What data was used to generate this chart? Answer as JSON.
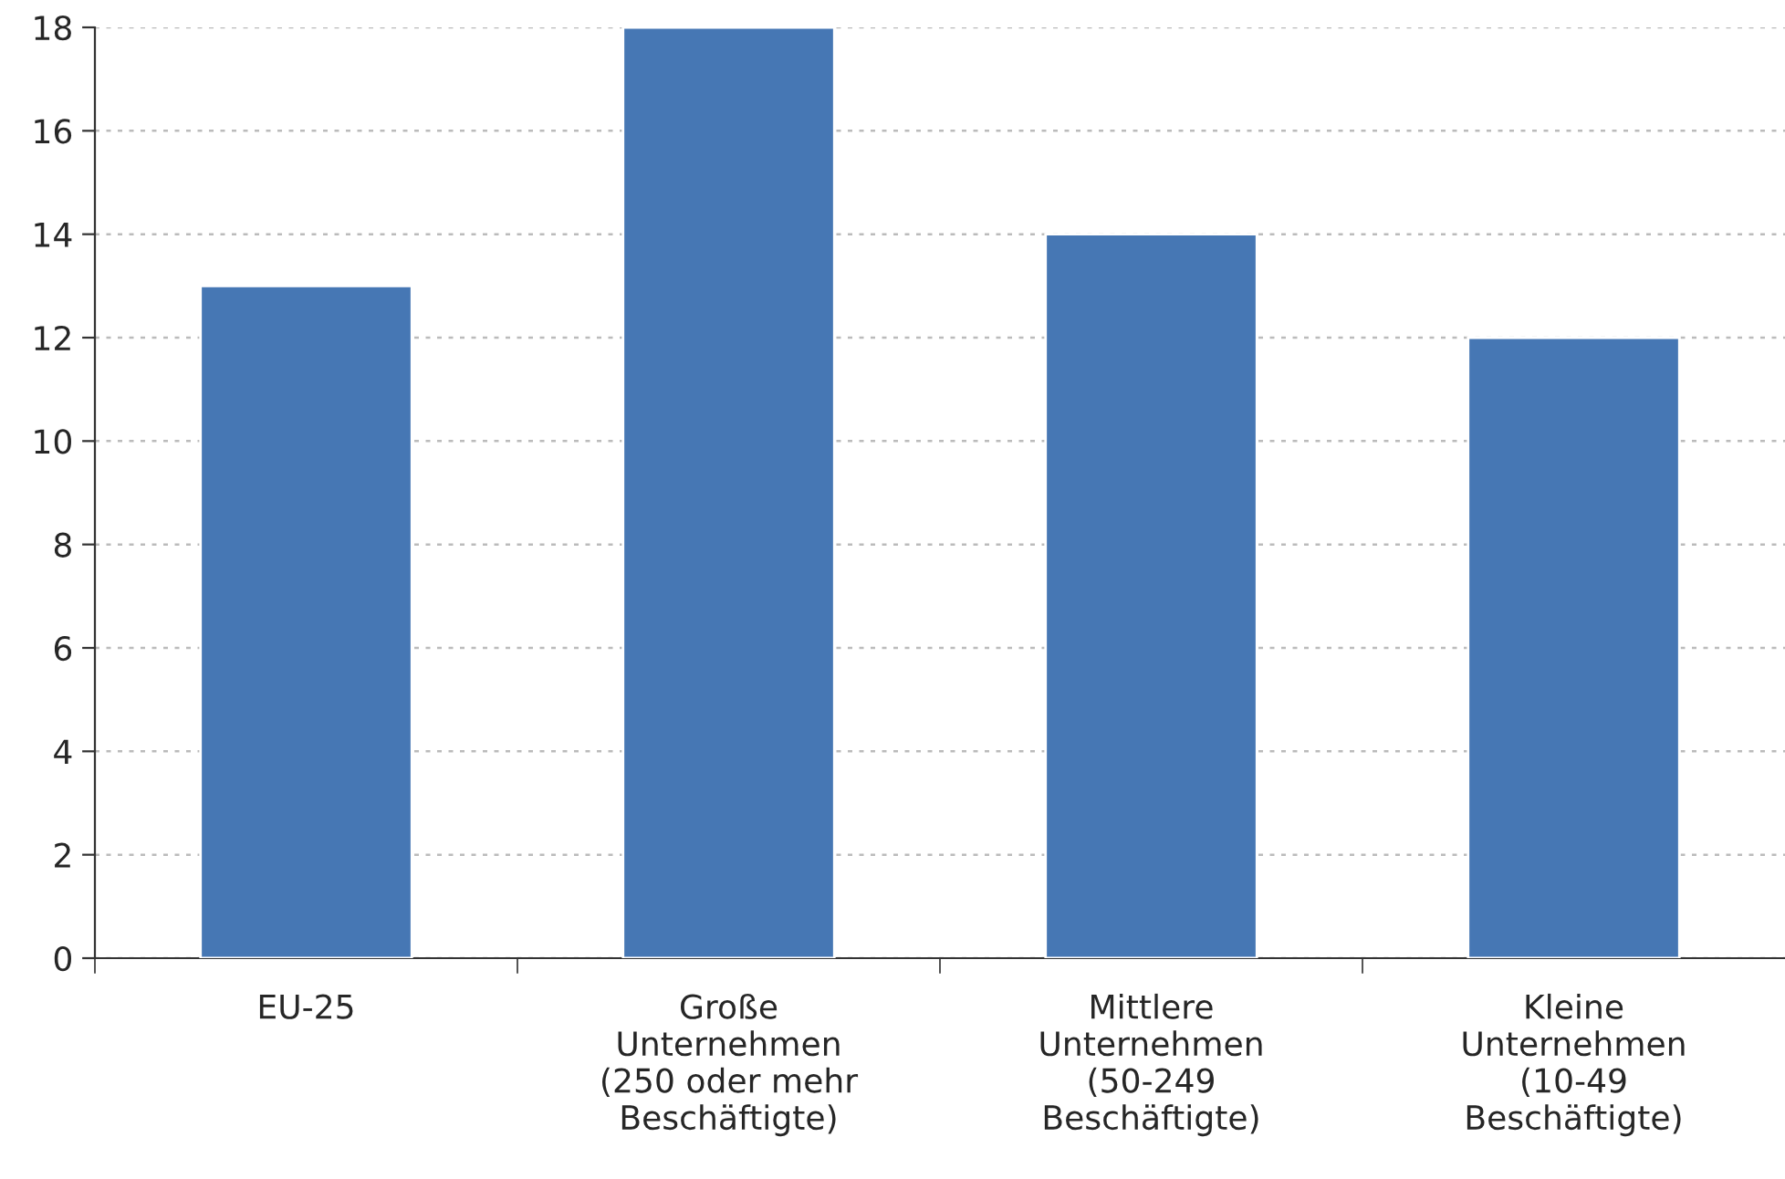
{
  "chart_data": {
    "type": "bar",
    "categories": [
      "EU-25",
      "Große\nUnternehmen\n(250 oder mehr\nBeschäftigte)",
      "Mittlere\nUnternehmen\n(50-249\nBeschäftigte)",
      "Kleine\nUnternehmen\n(10-49\nBeschäftigte)"
    ],
    "values": [
      13,
      18,
      14,
      12
    ],
    "color": "#4677b4",
    "ylim": [
      0,
      18
    ],
    "yticks": [
      0,
      2,
      4,
      6,
      8,
      10,
      12,
      14,
      16,
      18
    ],
    "grid": "y",
    "legend": false
  }
}
